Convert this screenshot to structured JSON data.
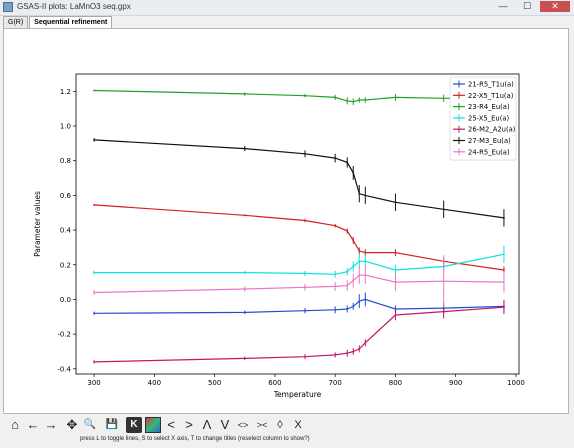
{
  "window": {
    "title": "GSAS-II plots: LaMnO3 seq.gpx",
    "minimize": "—",
    "maximize": "☐",
    "close": "✕"
  },
  "tabs": [
    {
      "label": "G(R)"
    },
    {
      "label": "Sequential refinement"
    }
  ],
  "toolbar": {
    "home": "⌂",
    "back": "←",
    "forward": "→",
    "pan": "✥",
    "zoom": "🔍",
    "save": "💾",
    "key": "K",
    "colors": "",
    "lt": "<",
    "gt": ">",
    "up": "Λ",
    "down": "V",
    "expand": "<>",
    "shrink": "><",
    "vexpand": "◊",
    "vshrink": "X"
  },
  "status": "press L to toggle lines, S to select X axis, T to change titles (reselect column to show?)",
  "chart_data": {
    "type": "line",
    "xlabel": "Temperature",
    "ylabel": "Parameter values",
    "xlim": [
      270,
      1005
    ],
    "ylim": [
      -0.43,
      1.3
    ],
    "xticks": [
      "300",
      "400",
      "500",
      "600",
      "700",
      "800",
      "900",
      "1000"
    ],
    "yticks": [
      "-0.4",
      "-0.2",
      "0.0",
      "0.2",
      "0.4",
      "0.6",
      "0.8",
      "1.0",
      "1.2"
    ],
    "legend_position": "top-right",
    "x": [
      300,
      550,
      650,
      700,
      720,
      730,
      740,
      750,
      800,
      880,
      980
    ],
    "series": [
      {
        "name": "21-R5_T1u(a)",
        "color": "#1f4fd0",
        "values": [
          -0.08,
          -0.075,
          -0.065,
          -0.06,
          -0.055,
          -0.04,
          -0.01,
          0.0,
          -0.055,
          -0.05,
          -0.04
        ],
        "err": [
          0.01,
          0.01,
          0.015,
          0.02,
          0.02,
          0.02,
          0.04,
          0.04,
          0.02,
          0.03,
          0.035
        ]
      },
      {
        "name": "22-X5_T1u(a)",
        "color": "#d62020",
        "values": [
          0.545,
          0.485,
          0.455,
          0.425,
          0.395,
          0.34,
          0.28,
          0.27,
          0.27,
          0.22,
          0.17
        ],
        "err": [
          0.005,
          0.005,
          0.01,
          0.01,
          0.015,
          0.02,
          0.02,
          0.02,
          0.02,
          0.02,
          0.02
        ]
      },
      {
        "name": "23-R4_Eu(a)",
        "color": "#22a02a",
        "values": [
          1.205,
          1.185,
          1.175,
          1.165,
          1.145,
          1.14,
          1.15,
          1.15,
          1.165,
          1.16,
          1.16
        ],
        "err": [
          0.005,
          0.01,
          0.01,
          0.015,
          0.02,
          0.02,
          0.015,
          0.015,
          0.02,
          0.02,
          0.02
        ]
      },
      {
        "name": "25-X5_Eu(a)",
        "color": "#10e0e0",
        "values": [
          0.155,
          0.155,
          0.15,
          0.145,
          0.16,
          0.19,
          0.22,
          0.22,
          0.17,
          0.19,
          0.26
        ],
        "err": [
          0.01,
          0.01,
          0.015,
          0.02,
          0.02,
          0.03,
          0.04,
          0.04,
          0.03,
          0.04,
          0.05
        ]
      },
      {
        "name": "26-M2_A2u(a)",
        "color": "#c0186c",
        "values": [
          -0.36,
          -0.34,
          -0.33,
          -0.32,
          -0.31,
          -0.3,
          -0.285,
          -0.25,
          -0.09,
          -0.07,
          -0.045
        ],
        "err": [
          0.01,
          0.01,
          0.015,
          0.015,
          0.02,
          0.02,
          0.02,
          0.02,
          0.03,
          0.04,
          0.04
        ]
      },
      {
        "name": "27-M3_Eu(a)",
        "color": "#111111",
        "values": [
          0.92,
          0.87,
          0.84,
          0.815,
          0.79,
          0.73,
          0.61,
          0.6,
          0.56,
          0.52,
          0.47
        ],
        "err": [
          0.01,
          0.015,
          0.02,
          0.025,
          0.03,
          0.04,
          0.05,
          0.05,
          0.05,
          0.05,
          0.05
        ]
      },
      {
        "name": "24-R5_Eu(a)",
        "color": "#e878c8",
        "values": [
          0.04,
          0.06,
          0.07,
          0.075,
          0.08,
          0.11,
          0.14,
          0.14,
          0.1,
          0.105,
          0.1
        ],
        "err": [
          0.015,
          0.015,
          0.02,
          0.025,
          0.03,
          0.04,
          0.05,
          0.05,
          0.05,
          0.15,
          0.06
        ]
      }
    ]
  }
}
